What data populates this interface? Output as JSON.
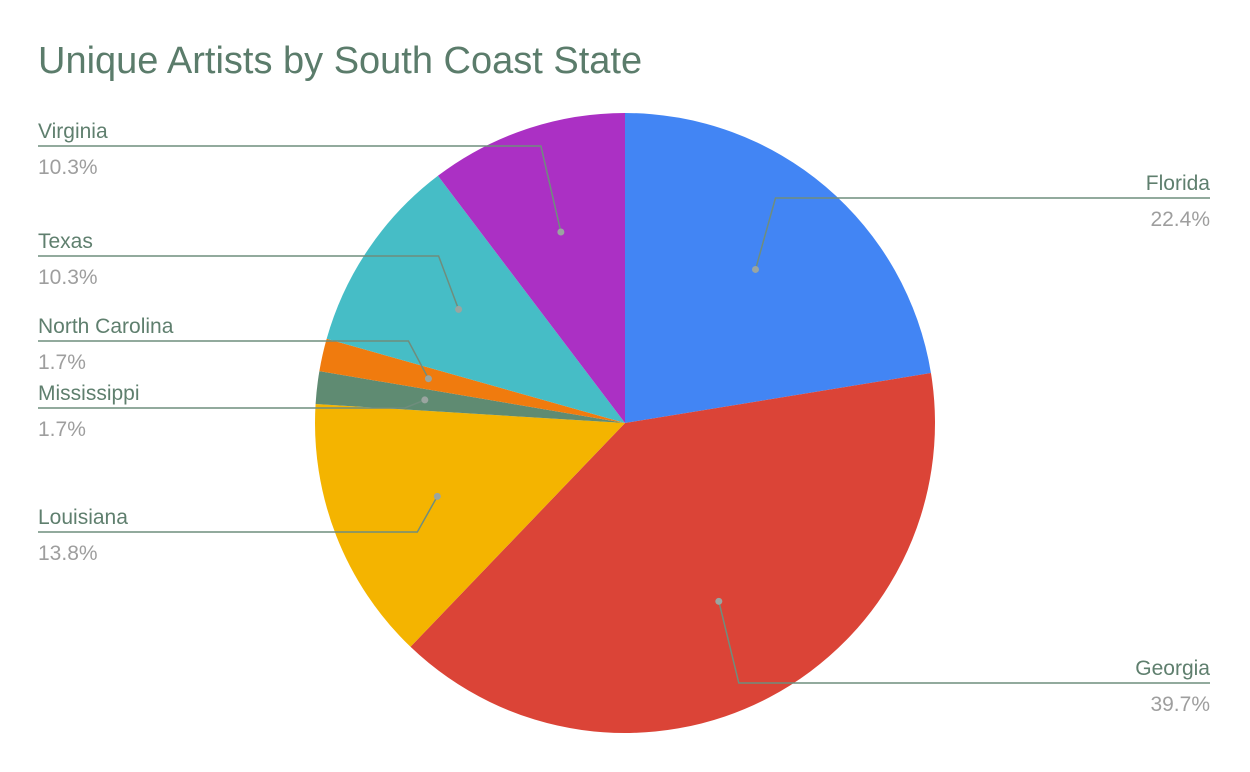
{
  "chart_data": {
    "type": "pie",
    "title": "Unique Artists by South Coast State",
    "start_angle_deg": 0,
    "direction": "clockwise",
    "slices": [
      {
        "label": "Florida",
        "value": 22.4,
        "display": "22.4%",
        "color": "#4285f4",
        "label_side": "right"
      },
      {
        "label": "Georgia",
        "value": 39.7,
        "display": "39.7%",
        "color": "#db4437",
        "label_side": "right"
      },
      {
        "label": "Louisiana",
        "value": 13.8,
        "display": "13.8%",
        "color": "#f4b400",
        "label_side": "left"
      },
      {
        "label": "Mississippi",
        "value": 1.7,
        "display": "1.7%",
        "color": "#5f8b72",
        "label_side": "left"
      },
      {
        "label": "North Carolina",
        "value": 1.7,
        "display": "1.7%",
        "color": "#f07b0e",
        "label_side": "left"
      },
      {
        "label": "Texas",
        "value": 10.3,
        "display": "10.3%",
        "color": "#46bdc6",
        "label_side": "left"
      },
      {
        "label": "Virginia",
        "value": 10.3,
        "display": "10.3%",
        "color": "#ab30c4",
        "label_side": "left"
      }
    ],
    "legend": "none",
    "label_style": "callout-with-percent",
    "label_color": "#5f7f6e",
    "percent_color": "#9e9e9e",
    "leader_color": "#6f8d7d"
  }
}
